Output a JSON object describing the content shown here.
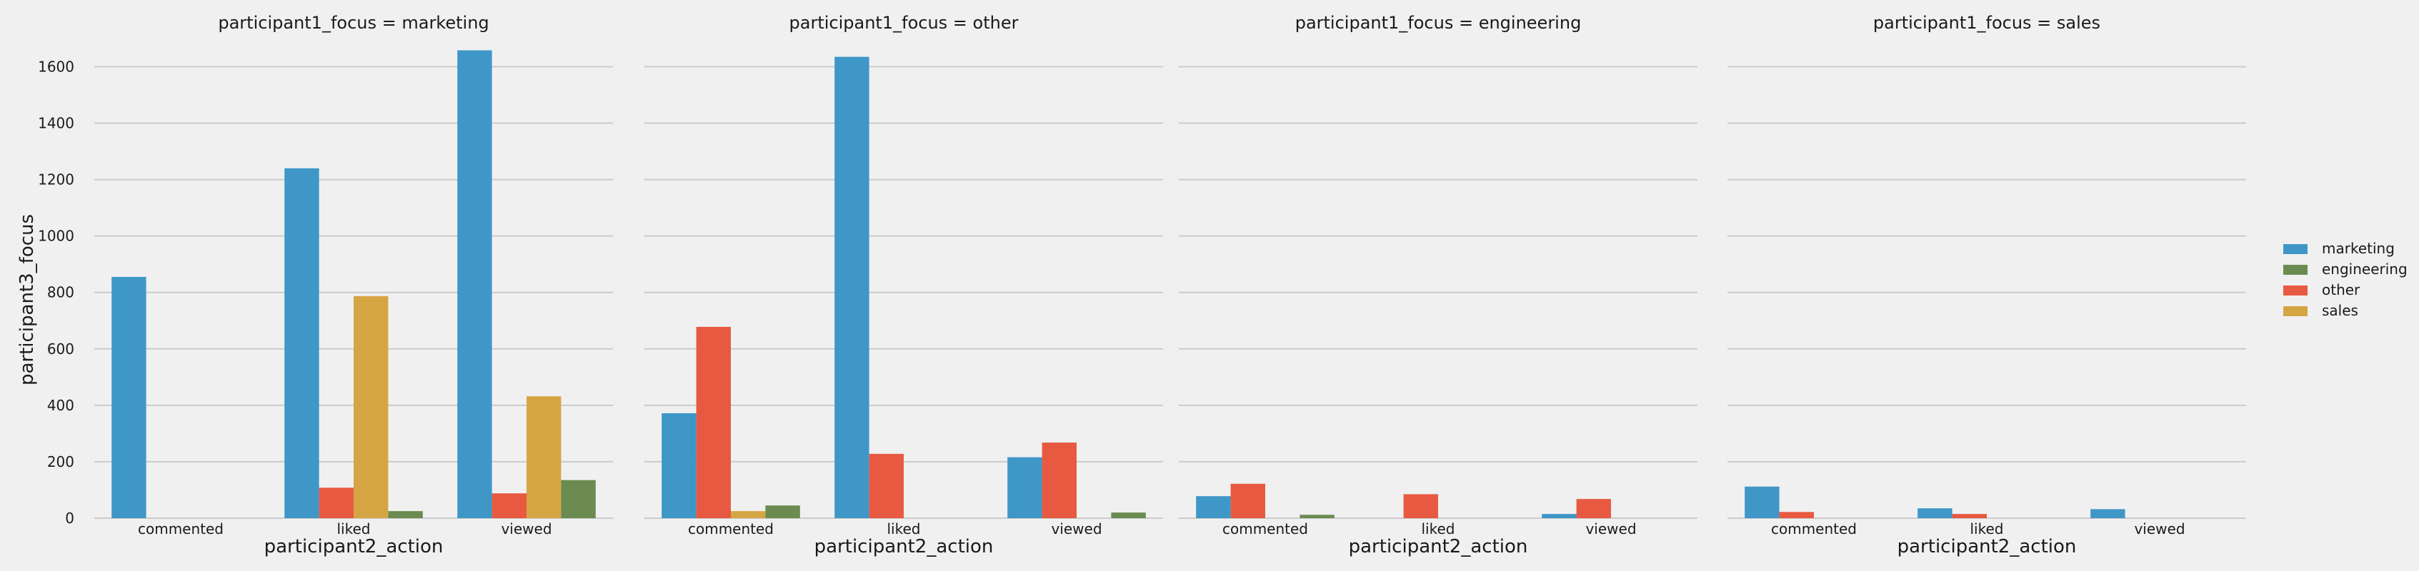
{
  "chart_data": {
    "type": "bar",
    "ylabel": "participant3_focus",
    "xlabel": "participant2_action",
    "ylim": [
      0,
      1720
    ],
    "yticks": [
      0,
      200,
      400,
      600,
      800,
      1000,
      1200,
      1400,
      1600
    ],
    "categories": [
      "commented",
      "liked",
      "viewed"
    ],
    "hue_order": [
      "marketing",
      "other",
      "sales",
      "engineering"
    ],
    "colors": {
      "marketing": "#3f97c8",
      "other": "#e75a41",
      "sales": "#d6a543",
      "engineering": "#6b8b51"
    },
    "legend": {
      "placement": "right",
      "entries": [
        "marketing",
        "engineering",
        "other",
        "sales"
      ]
    },
    "grid": true,
    "panels": [
      {
        "title": "participant1_focus = marketing",
        "series": [
          {
            "name": "marketing",
            "values": [
              855,
              1240,
              1658
            ]
          },
          {
            "name": "other",
            "values": [
              0,
              108,
              88
            ]
          },
          {
            "name": "sales",
            "values": [
              0,
              787,
              432
            ]
          },
          {
            "name": "engineering",
            "values": [
              0,
              25,
              135
            ]
          }
        ]
      },
      {
        "title": "participant1_focus = other",
        "series": [
          {
            "name": "marketing",
            "values": [
              372,
              1635,
              216
            ]
          },
          {
            "name": "other",
            "values": [
              678,
              228,
              268
            ]
          },
          {
            "name": "sales",
            "values": [
              25,
              0,
              0
            ]
          },
          {
            "name": "engineering",
            "values": [
              45,
              0,
              20
            ]
          }
        ]
      },
      {
        "title": "participant1_focus = engineering",
        "series": [
          {
            "name": "marketing",
            "values": [
              78,
              0,
              15
            ]
          },
          {
            "name": "other",
            "values": [
              122,
              85,
              68
            ]
          },
          {
            "name": "sales",
            "values": [
              0,
              0,
              0
            ]
          },
          {
            "name": "engineering",
            "values": [
              12,
              0,
              0
            ]
          }
        ]
      },
      {
        "title": "participant1_focus = sales",
        "series": [
          {
            "name": "marketing",
            "values": [
              112,
              35,
              32
            ]
          },
          {
            "name": "other",
            "values": [
              22,
              15,
              0
            ]
          },
          {
            "name": "sales",
            "values": [
              0,
              0,
              0
            ]
          },
          {
            "name": "engineering",
            "values": [
              0,
              0,
              0
            ]
          }
        ]
      }
    ]
  }
}
